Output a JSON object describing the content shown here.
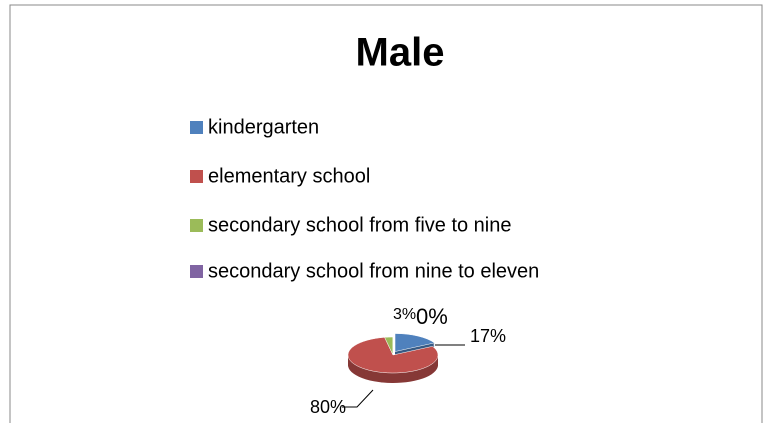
{
  "chart_data": {
    "type": "pie",
    "title": "Male",
    "categories": [
      "kindergarten",
      "elementary school",
      "secondary school from five to nine",
      "secondary school from nine to eleven"
    ],
    "values": [
      17,
      80,
      3,
      0
    ],
    "value_labels": [
      "17%",
      "80%",
      "3%",
      "0%"
    ],
    "colors": [
      "#4f81bd",
      "#c0504d",
      "#9bbb59",
      "#8064a2"
    ],
    "legend": "top"
  }
}
